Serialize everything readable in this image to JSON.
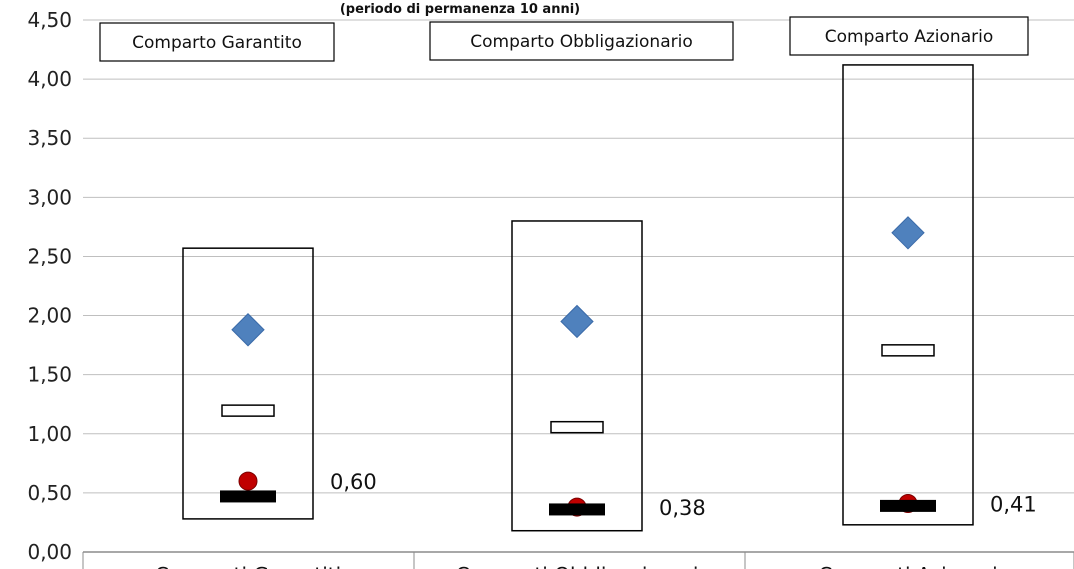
{
  "chart_data": {
    "type": "scatter",
    "title": "(periodo di permanenza 10 anni)",
    "xlabel": "",
    "ylabel": "",
    "ylim": [
      0,
      4.5
    ],
    "yticks": [
      "0,00",
      "0,50",
      "1,00",
      "1,50",
      "2,00",
      "2,50",
      "3,00",
      "3,50",
      "4,00",
      "4,50"
    ],
    "grid": true,
    "categories": [
      "Comparti Garantiti",
      "Comparti Obbligazionari",
      "Comparti Azionari"
    ],
    "box_labels": [
      "Comparto Garantito",
      "Comparto Obbligazionario",
      "Comparto Azionario"
    ],
    "series": [
      {
        "values": [
          0.28,
          0.18,
          0.23
        ]
      },
      {
        "values": [
          2.57,
          2.8,
          4.12
        ]
      },
      {
        "values": [
          1.88,
          1.95,
          2.7
        ],
        "color": "#4f81bd"
      },
      {
        "values": [
          1.2,
          1.06,
          1.71
        ]
      },
      {
        "values": [
          0.47,
          0.36,
          0.39
        ]
      },
      {
        "values": [
          0.6,
          0.38,
          0.41
        ],
        "color": "#c00000"
      }
    ],
    "value_labels": [
      "0,60",
      "0,38",
      "0,41"
    ]
  }
}
